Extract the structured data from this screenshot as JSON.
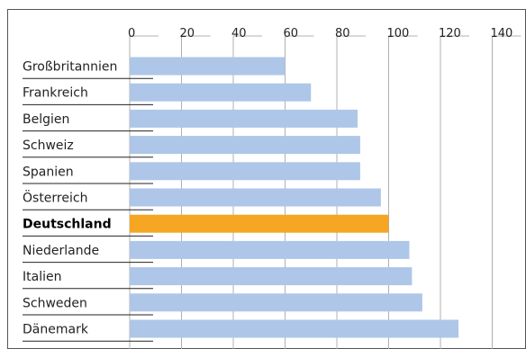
{
  "chart_data": {
    "type": "bar",
    "orientation": "horizontal",
    "title": "",
    "xlabel": "",
    "ylabel": "",
    "xlim": [
      0,
      140
    ],
    "ticks": [
      0,
      20,
      40,
      60,
      80,
      100,
      120,
      140
    ],
    "tick_labels": [
      "0",
      "20",
      "40",
      "60",
      "80",
      "100",
      "120",
      "140"
    ],
    "grid": true,
    "legend": "none",
    "categories": [
      "Großbritannien",
      "Frankreich",
      "Belgien",
      "Schweiz",
      "Spanien",
      "Österreich",
      "Deutschland",
      "Niederlande",
      "Italien",
      "Schweden",
      "Dänemark"
    ],
    "values": [
      60,
      70,
      88,
      89,
      89,
      97,
      100,
      108,
      109,
      113,
      127
    ],
    "highlight": "Deutschland",
    "colors": {
      "bar": "#aec6e8",
      "highlight": "#f5a623",
      "grid": "#b0b0b0",
      "frame": "#555555"
    }
  }
}
